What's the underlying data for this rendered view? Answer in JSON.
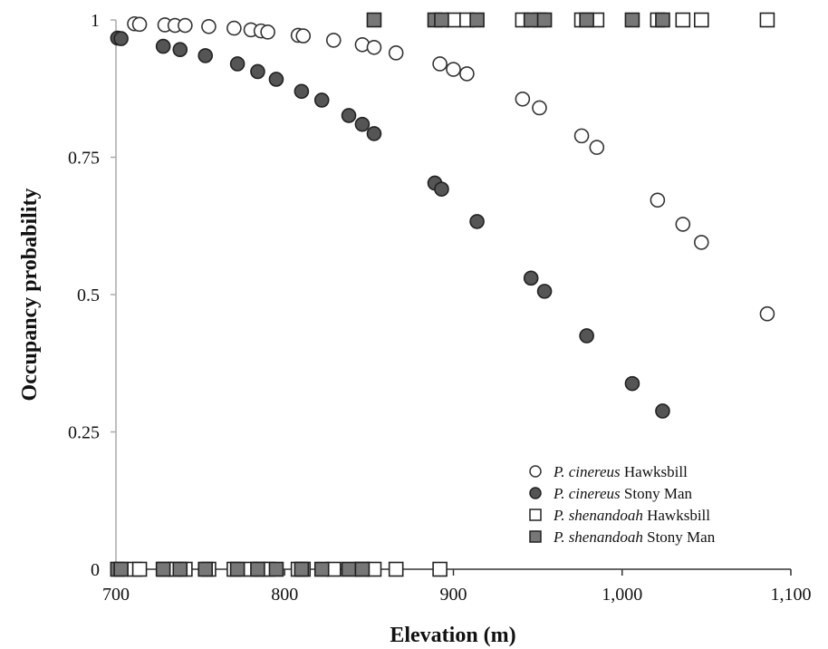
{
  "chart_data": {
    "type": "scatter",
    "xlabel": "Elevation (m)",
    "ylabel": "Occupancy probability",
    "xlim": [
      700,
      1100
    ],
    "ylim": [
      0,
      1
    ],
    "xticks": [
      700,
      800,
      900,
      1000,
      1100
    ],
    "xtick_labels": [
      "700",
      "800",
      "900",
      "1,000",
      "1,100"
    ],
    "yticks": [
      0,
      0.25,
      0.5,
      0.75,
      1
    ],
    "ytick_labels": [
      "0",
      "0.25",
      "0.5",
      "0.75",
      "1"
    ],
    "grid": false,
    "legend_position": "bottom-right",
    "series": [
      {
        "name_italic": "P. cinereus",
        "name_plain": "Hawksbill",
        "marker": "circle",
        "fill": "#ffffff",
        "stroke": "#333333",
        "points": [
          [
            711,
            0.993
          ],
          [
            714,
            0.992
          ],
          [
            729,
            0.991
          ],
          [
            735,
            0.99
          ],
          [
            741,
            0.99
          ],
          [
            755,
            0.988
          ],
          [
            770,
            0.985
          ],
          [
            780,
            0.982
          ],
          [
            786,
            0.98
          ],
          [
            790,
            0.978
          ],
          [
            808,
            0.972
          ],
          [
            811,
            0.971
          ],
          [
            829,
            0.963
          ],
          [
            846,
            0.955
          ],
          [
            853,
            0.95
          ],
          [
            866,
            0.94
          ],
          [
            892,
            0.92
          ],
          [
            900,
            0.91
          ],
          [
            908,
            0.902
          ],
          [
            941,
            0.856
          ],
          [
            951,
            0.84
          ],
          [
            976,
            0.789
          ],
          [
            985,
            0.768
          ],
          [
            1021,
            0.672
          ],
          [
            1036,
            0.628
          ],
          [
            1047,
            0.595
          ],
          [
            1086,
            0.465
          ]
        ]
      },
      {
        "name_italic": "P. cinereus",
        "name_plain": "Stony Man",
        "marker": "circle",
        "fill": "#555555",
        "stroke": "#222222",
        "points": [
          [
            701,
            0.967
          ],
          [
            703,
            0.966
          ],
          [
            728,
            0.952
          ],
          [
            738,
            0.946
          ],
          [
            753,
            0.935
          ],
          [
            772,
            0.92
          ],
          [
            784,
            0.906
          ],
          [
            795,
            0.892
          ],
          [
            810,
            0.87
          ],
          [
            822,
            0.854
          ],
          [
            838,
            0.826
          ],
          [
            846,
            0.81
          ],
          [
            853,
            0.793
          ],
          [
            889,
            0.703
          ],
          [
            893,
            0.692
          ],
          [
            914,
            0.633
          ],
          [
            946,
            0.53
          ],
          [
            954,
            0.506
          ],
          [
            979,
            0.425
          ],
          [
            1006,
            0.338
          ],
          [
            1024,
            0.288
          ]
        ]
      },
      {
        "name_italic": "P. shenandoah",
        "name_plain": "Hawksbill",
        "marker": "square",
        "fill": "#ffffff",
        "stroke": "#222222",
        "points": [
          [
            711,
            0
          ],
          [
            714,
            0
          ],
          [
            729,
            0
          ],
          [
            735,
            0
          ],
          [
            741,
            0
          ],
          [
            755,
            0
          ],
          [
            770,
            0
          ],
          [
            780,
            0
          ],
          [
            786,
            0
          ],
          [
            790,
            0
          ],
          [
            808,
            0
          ],
          [
            811,
            0
          ],
          [
            829,
            0
          ],
          [
            846,
            0
          ],
          [
            853,
            0
          ],
          [
            866,
            0
          ],
          [
            892,
            0
          ],
          [
            900,
            1
          ],
          [
            908,
            1
          ],
          [
            941,
            1
          ],
          [
            951,
            1
          ],
          [
            976,
            1
          ],
          [
            985,
            1
          ],
          [
            1021,
            1
          ],
          [
            1036,
            1
          ],
          [
            1047,
            1
          ],
          [
            1086,
            1
          ]
        ]
      },
      {
        "name_italic": "P. shenandoah",
        "name_plain": "Stony Man",
        "marker": "square",
        "fill": "#777777",
        "stroke": "#222222",
        "points": [
          [
            701,
            0
          ],
          [
            703,
            0
          ],
          [
            728,
            0
          ],
          [
            738,
            0
          ],
          [
            753,
            0
          ],
          [
            772,
            0
          ],
          [
            784,
            0
          ],
          [
            795,
            0
          ],
          [
            810,
            0
          ],
          [
            822,
            0
          ],
          [
            838,
            0
          ],
          [
            846,
            0
          ],
          [
            853,
            1
          ],
          [
            889,
            1
          ],
          [
            893,
            1
          ],
          [
            914,
            1
          ],
          [
            946,
            1
          ],
          [
            954,
            1
          ],
          [
            979,
            1
          ],
          [
            1006,
            1
          ],
          [
            1024,
            1
          ]
        ]
      }
    ]
  }
}
